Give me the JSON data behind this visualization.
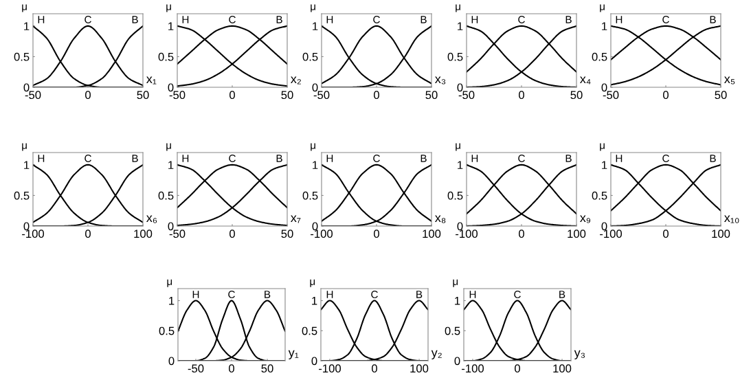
{
  "chart_data": [
    {
      "type": "line",
      "xlabel": "x₁",
      "ylabel": "μ",
      "x": [
        -50,
        -37.5,
        -25,
        -12.5,
        0,
        12.5,
        25,
        37.5,
        50
      ],
      "xlim": [
        -50,
        50
      ],
      "xticks": [
        -50,
        0,
        50
      ],
      "ylim": [
        0,
        1.2
      ],
      "yticks": [
        0,
        0.5,
        1
      ],
      "series": [
        {
          "name": "H",
          "color": "#000000",
          "values": [
            1,
            0.8,
            0.42,
            0.14,
            0.03,
            0,
            0,
            0,
            0
          ]
        },
        {
          "name": "C",
          "color": "#000000",
          "values": [
            0.03,
            0.14,
            0.42,
            0.8,
            1,
            0.8,
            0.42,
            0.14,
            0.03
          ]
        },
        {
          "name": "B",
          "color": "#000000",
          "values": [
            0,
            0,
            0,
            0,
            0.03,
            0.14,
            0.42,
            0.8,
            1
          ]
        }
      ]
    },
    {
      "type": "line",
      "xlabel": "x₂",
      "ylabel": "μ",
      "x": [
        -50,
        -37.5,
        -25,
        -12.5,
        0,
        12.5,
        25,
        37.5,
        50
      ],
      "xlim": [
        -50,
        50
      ],
      "xticks": [
        -50,
        0,
        50
      ],
      "ylim": [
        0,
        1.2
      ],
      "yticks": [
        0,
        0.5,
        1
      ],
      "series": [
        {
          "name": "H",
          "color": "#000000",
          "values": [
            1,
            0.94,
            0.78,
            0.58,
            0.38,
            0.22,
            0.11,
            0.05,
            0.02
          ]
        },
        {
          "name": "C",
          "color": "#000000",
          "values": [
            0.38,
            0.58,
            0.78,
            0.94,
            1,
            0.94,
            0.78,
            0.58,
            0.38
          ]
        },
        {
          "name": "B",
          "color": "#000000",
          "values": [
            0.02,
            0.05,
            0.11,
            0.22,
            0.38,
            0.58,
            0.78,
            0.94,
            1
          ]
        }
      ]
    },
    {
      "type": "line",
      "xlabel": "x₃",
      "ylabel": "μ",
      "x": [
        -50,
        -37.5,
        -25,
        -12.5,
        0,
        12.5,
        25,
        37.5,
        50
      ],
      "xlim": [
        -50,
        50
      ],
      "xticks": [
        -50,
        0,
        50
      ],
      "ylim": [
        0,
        1.2
      ],
      "yticks": [
        0,
        0.5,
        1
      ],
      "series": [
        {
          "name": "H",
          "color": "#000000",
          "values": [
            1,
            0.83,
            0.48,
            0.2,
            0.06,
            0.01,
            0,
            0,
            0
          ]
        },
        {
          "name": "C",
          "color": "#000000",
          "values": [
            0.06,
            0.2,
            0.48,
            0.83,
            1,
            0.83,
            0.48,
            0.2,
            0.06
          ]
        },
        {
          "name": "B",
          "color": "#000000",
          "values": [
            0,
            0,
            0,
            0.01,
            0.06,
            0.2,
            0.48,
            0.83,
            1
          ]
        }
      ]
    },
    {
      "type": "line",
      "xlabel": "x₄",
      "ylabel": "μ",
      "x": [
        -50,
        -37.5,
        -25,
        -12.5,
        0,
        12.5,
        25,
        37.5,
        50
      ],
      "xlim": [
        -50,
        50
      ],
      "xticks": [
        -50,
        0,
        50
      ],
      "ylim": [
        0,
        1.2
      ],
      "yticks": [
        0,
        0.5,
        1
      ],
      "series": [
        {
          "name": "H",
          "color": "#000000",
          "values": [
            1,
            0.92,
            0.71,
            0.46,
            0.25,
            0.11,
            0.04,
            0.01,
            0
          ]
        },
        {
          "name": "C",
          "color": "#000000",
          "values": [
            0.25,
            0.46,
            0.71,
            0.92,
            1,
            0.92,
            0.71,
            0.46,
            0.25
          ]
        },
        {
          "name": "B",
          "color": "#000000",
          "values": [
            0,
            0.01,
            0.04,
            0.11,
            0.25,
            0.46,
            0.71,
            0.92,
            1
          ]
        }
      ]
    },
    {
      "type": "line",
      "xlabel": "x₅",
      "ylabel": "μ",
      "x": [
        -50,
        -37.5,
        -25,
        -12.5,
        0,
        12.5,
        25,
        37.5,
        50
      ],
      "xlim": [
        -50,
        50
      ],
      "xticks": [
        -50,
        0,
        50
      ],
      "ylim": [
        0,
        1.2
      ],
      "yticks": [
        0,
        0.5,
        1
      ],
      "series": [
        {
          "name": "H",
          "color": "#000000",
          "values": [
            1,
            0.95,
            0.82,
            0.64,
            0.45,
            0.29,
            0.17,
            0.09,
            0.04
          ]
        },
        {
          "name": "C",
          "color": "#000000",
          "values": [
            0.45,
            0.64,
            0.82,
            0.95,
            1,
            0.95,
            0.82,
            0.64,
            0.45
          ]
        },
        {
          "name": "B",
          "color": "#000000",
          "values": [
            0.04,
            0.09,
            0.17,
            0.29,
            0.45,
            0.64,
            0.82,
            0.95,
            1
          ]
        }
      ]
    },
    {
      "type": "line",
      "xlabel": "x₆",
      "ylabel": "μ",
      "x": [
        -100,
        -75,
        -50,
        -25,
        0,
        25,
        50,
        75,
        100
      ],
      "xlim": [
        -100,
        100
      ],
      "xticks": [
        -100,
        0,
        100
      ],
      "ylim": [
        0,
        1.2
      ],
      "yticks": [
        0,
        0.5,
        1
      ],
      "series": [
        {
          "name": "H",
          "color": "#000000",
          "values": [
            1,
            0.84,
            0.5,
            0.21,
            0.06,
            0.01,
            0,
            0,
            0
          ]
        },
        {
          "name": "C",
          "color": "#000000",
          "values": [
            0.06,
            0.21,
            0.5,
            0.84,
            1,
            0.84,
            0.5,
            0.21,
            0.06
          ]
        },
        {
          "name": "B",
          "color": "#000000",
          "values": [
            0,
            0,
            0,
            0.01,
            0.06,
            0.21,
            0.5,
            0.84,
            1
          ]
        }
      ]
    },
    {
      "type": "line",
      "xlabel": "x₇",
      "ylabel": "μ",
      "x": [
        -50,
        -37.5,
        -25,
        -12.5,
        0,
        12.5,
        25,
        37.5,
        50
      ],
      "xlim": [
        -50,
        50
      ],
      "xticks": [
        -50,
        0,
        50
      ],
      "ylim": [
        0,
        1.2
      ],
      "yticks": [
        0,
        0.5,
        1
      ],
      "series": [
        {
          "name": "H",
          "color": "#000000",
          "values": [
            1,
            0.93,
            0.74,
            0.51,
            0.3,
            0.15,
            0.07,
            0.03,
            0.01
          ]
        },
        {
          "name": "C",
          "color": "#000000",
          "values": [
            0.3,
            0.51,
            0.74,
            0.93,
            1,
            0.93,
            0.74,
            0.51,
            0.3
          ]
        },
        {
          "name": "B",
          "color": "#000000",
          "values": [
            0.01,
            0.03,
            0.07,
            0.15,
            0.3,
            0.51,
            0.74,
            0.93,
            1
          ]
        }
      ]
    },
    {
      "type": "line",
      "xlabel": "x₈",
      "ylabel": "μ",
      "x": [
        -100,
        -75,
        -50,
        -25,
        0,
        25,
        50,
        75,
        100
      ],
      "xlim": [
        -100,
        100
      ],
      "xticks": [
        -100,
        0,
        100
      ],
      "ylim": [
        0,
        1.2
      ],
      "yticks": [
        0,
        0.5,
        1
      ],
      "series": [
        {
          "name": "H",
          "color": "#000000",
          "values": [
            1,
            0.86,
            0.54,
            0.25,
            0.08,
            0.02,
            0,
            0,
            0
          ]
        },
        {
          "name": "C",
          "color": "#000000",
          "values": [
            0.08,
            0.25,
            0.54,
            0.86,
            1,
            0.86,
            0.54,
            0.25,
            0.08
          ]
        },
        {
          "name": "B",
          "color": "#000000",
          "values": [
            0,
            0,
            0,
            0.02,
            0.08,
            0.25,
            0.54,
            0.86,
            1
          ]
        }
      ]
    },
    {
      "type": "line",
      "xlabel": "x₉",
      "ylabel": "μ",
      "x": [
        -100,
        -75,
        -50,
        -25,
        0,
        25,
        50,
        75,
        100
      ],
      "xlim": [
        -100,
        100
      ],
      "xticks": [
        -100,
        0,
        100
      ],
      "ylim": [
        0,
        1.2
      ],
      "yticks": [
        0,
        0.5,
        1
      ],
      "series": [
        {
          "name": "H",
          "color": "#000000",
          "values": [
            1,
            0.9,
            0.67,
            0.41,
            0.2,
            0.08,
            0.03,
            0.01,
            0
          ]
        },
        {
          "name": "C",
          "color": "#000000",
          "values": [
            0.2,
            0.41,
            0.67,
            0.9,
            1,
            0.9,
            0.67,
            0.41,
            0.2
          ]
        },
        {
          "name": "B",
          "color": "#000000",
          "values": [
            0,
            0.01,
            0.03,
            0.08,
            0.2,
            0.41,
            0.67,
            0.9,
            1
          ]
        }
      ]
    },
    {
      "type": "line",
      "xlabel": "x₁₀",
      "ylabel": "μ",
      "x": [
        -100,
        -75,
        -50,
        -25,
        0,
        25,
        50,
        75,
        100
      ],
      "xlim": [
        -100,
        100
      ],
      "xticks": [
        -100,
        0,
        100
      ],
      "ylim": [
        0,
        1.2
      ],
      "yticks": [
        0,
        0.5,
        1
      ],
      "series": [
        {
          "name": "H",
          "color": "#000000",
          "values": [
            1,
            0.92,
            0.7,
            0.46,
            0.25,
            0.1,
            0.04,
            0.01,
            0
          ]
        },
        {
          "name": "C",
          "color": "#000000",
          "values": [
            0.25,
            0.46,
            0.7,
            0.92,
            1,
            0.92,
            0.7,
            0.46,
            0.25
          ]
        },
        {
          "name": "B",
          "color": "#000000",
          "values": [
            0,
            0.01,
            0.04,
            0.1,
            0.25,
            0.46,
            0.7,
            0.92,
            1
          ]
        }
      ]
    },
    {
      "type": "line",
      "xlabel": "y₁",
      "ylabel": "μ",
      "x": [
        -75,
        -62.5,
        -50,
        -37.5,
        -25,
        -12.5,
        0,
        12.5,
        25,
        37.5,
        50,
        62.5,
        75
      ],
      "xlim": [
        -75,
        75
      ],
      "xticks": [
        -50,
        0,
        50
      ],
      "ylim": [
        0,
        1.2
      ],
      "yticks": [
        0,
        0.5,
        1
      ],
      "series": [
        {
          "name": "H",
          "color": "#000000",
          "values": [
            0.49,
            0.84,
            1,
            0.84,
            0.49,
            0.2,
            0.06,
            0.01,
            0,
            0,
            0,
            0,
            0
          ]
        },
        {
          "name": "C",
          "color": "#000000",
          "values": [
            0,
            0,
            0,
            0.04,
            0.23,
            0.69,
            1,
            0.69,
            0.23,
            0.04,
            0,
            0,
            0
          ]
        },
        {
          "name": "B",
          "color": "#000000",
          "values": [
            0,
            0,
            0,
            0,
            0,
            0.01,
            0.06,
            0.2,
            0.49,
            0.84,
            1,
            0.84,
            0.49
          ]
        }
      ]
    },
    {
      "type": "line",
      "xlabel": "y₂",
      "ylabel": "μ",
      "x": [
        -120,
        -100,
        -80,
        -60,
        -40,
        -20,
        0,
        20,
        40,
        60,
        80,
        100,
        120
      ],
      "xlim": [
        -120,
        120
      ],
      "xticks": [
        -100,
        0,
        100
      ],
      "ylim": [
        0,
        1.2
      ],
      "yticks": [
        0,
        0.5,
        1
      ],
      "series": [
        {
          "name": "H",
          "color": "#000000",
          "values": [
            0.85,
            1,
            0.85,
            0.52,
            0.23,
            0.07,
            0.02,
            0,
            0,
            0,
            0,
            0,
            0
          ]
        },
        {
          "name": "C",
          "color": "#000000",
          "values": [
            0,
            0,
            0.02,
            0.1,
            0.36,
            0.77,
            1,
            0.77,
            0.36,
            0.1,
            0.02,
            0,
            0
          ]
        },
        {
          "name": "B",
          "color": "#000000",
          "values": [
            0,
            0,
            0,
            0,
            0,
            0,
            0.02,
            0.07,
            0.23,
            0.52,
            0.85,
            1,
            0.85
          ]
        }
      ]
    },
    {
      "type": "line",
      "xlabel": "y₃",
      "ylabel": "μ",
      "x": [
        -120,
        -100,
        -80,
        -60,
        -40,
        -20,
        0,
        20,
        40,
        60,
        80,
        100,
        120
      ],
      "xlim": [
        -120,
        120
      ],
      "xticks": [
        -100,
        0,
        100
      ],
      "ylim": [
        0,
        1.2
      ],
      "yticks": [
        0,
        0.5,
        1
      ],
      "series": [
        {
          "name": "H",
          "color": "#000000",
          "values": [
            0.85,
            1,
            0.85,
            0.52,
            0.23,
            0.07,
            0.02,
            0,
            0,
            0,
            0,
            0,
            0
          ]
        },
        {
          "name": "C",
          "color": "#000000",
          "values": [
            0,
            0,
            0.03,
            0.14,
            0.41,
            0.8,
            1,
            0.8,
            0.41,
            0.14,
            0.03,
            0,
            0
          ]
        },
        {
          "name": "B",
          "color": "#000000",
          "values": [
            0,
            0,
            0,
            0,
            0,
            0,
            0.02,
            0.07,
            0.23,
            0.52,
            0.85,
            1,
            0.85
          ]
        }
      ]
    }
  ]
}
